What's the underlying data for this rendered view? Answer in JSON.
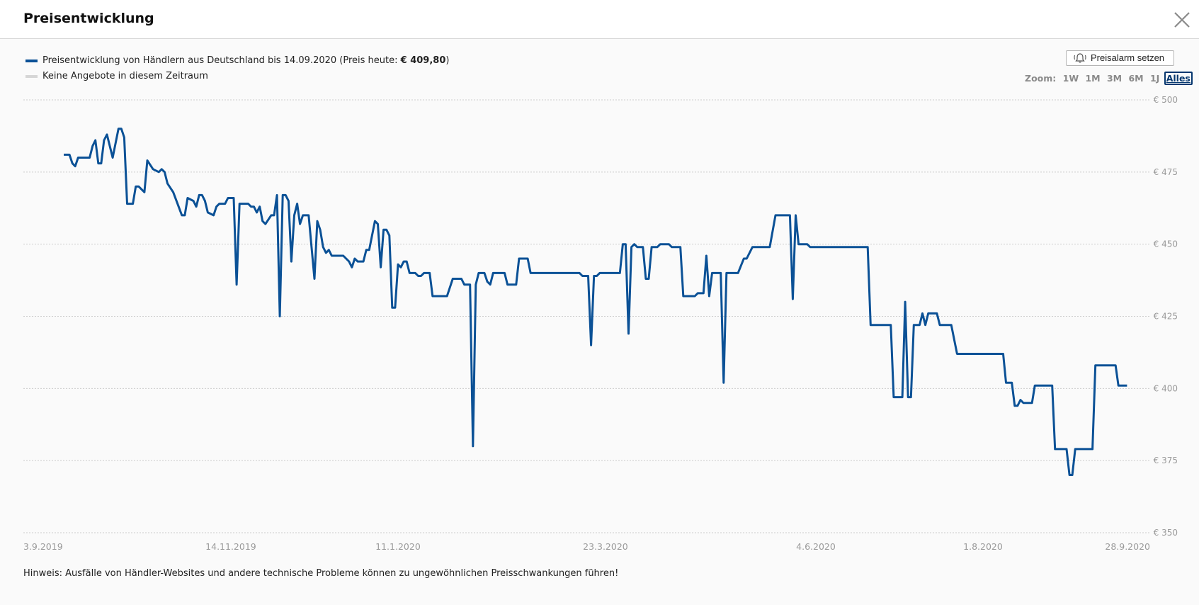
{
  "dialog": {
    "title": "Preisentwicklung",
    "close_icon": "close-icon",
    "alarm_button": {
      "icon": "bell-icon",
      "label": "Preisalarm setzen"
    },
    "zoom": {
      "label": "Zoom:",
      "options": [
        "1W",
        "1M",
        "3M",
        "6M",
        "1J",
        "Alles"
      ],
      "active": "Alles"
    },
    "legend": {
      "series_text": "Preisentwicklung von Händlern aus Deutschland bis 14.09.2020 (Preis heute: ",
      "series_price": "€ 409,80",
      "series_close": ")",
      "no_offers": "Keine Angebote in diesem Zeitraum"
    },
    "note": "Hinweis: Ausfälle von Händler-Websites und andere technische Probleme können zu ungewöhnlichen Preisschwankungen führen!"
  },
  "colors": {
    "series": "#0b5196",
    "no_offers": "#d6d6d6",
    "grid": "#cccccc",
    "axis_text": "#9a9a9a"
  },
  "chart_data": {
    "type": "line",
    "title": "",
    "xlabel": "",
    "ylabel": "",
    "ylim": [
      350,
      500
    ],
    "xlim": [
      "2019-09-03",
      "2020-09-28"
    ],
    "grid": true,
    "yticks": [
      500,
      475,
      450,
      425,
      400,
      375,
      350
    ],
    "ytick_labels": [
      "€ 500",
      "€ 475",
      "€ 450",
      "€ 425",
      "€ 400",
      "€ 375",
      "€ 350"
    ],
    "xticks": [
      "2019-09-03",
      "2019-11-14",
      "2020-01-11",
      "2020-03-23",
      "2020-06-04",
      "2020-08-01",
      "2020-09-28"
    ],
    "xtick_labels": [
      "3.9.2019",
      "14.11.2019",
      "11.1.2020",
      "23.3.2020",
      "4.6.2020",
      "1.8.2020",
      "28.9.2020"
    ],
    "series": [
      {
        "name": "Preisentwicklung von Händlern aus Deutschland bis 14.09.2020",
        "points": [
          [
            "2019-09-17",
            481
          ],
          [
            "2019-09-19",
            481
          ],
          [
            "2019-09-20",
            478
          ],
          [
            "2019-09-21",
            477
          ],
          [
            "2019-09-22",
            480
          ],
          [
            "2019-09-26",
            480
          ],
          [
            "2019-09-27",
            484
          ],
          [
            "2019-09-28",
            486
          ],
          [
            "2019-09-29",
            478
          ],
          [
            "2019-09-30",
            478
          ],
          [
            "2019-10-01",
            486
          ],
          [
            "2019-10-02",
            488
          ],
          [
            "2019-10-04",
            480
          ],
          [
            "2019-10-05",
            485
          ],
          [
            "2019-10-06",
            490
          ],
          [
            "2019-10-07",
            490
          ],
          [
            "2019-10-08",
            487
          ],
          [
            "2019-10-09",
            464
          ],
          [
            "2019-10-11",
            464
          ],
          [
            "2019-10-12",
            470
          ],
          [
            "2019-10-13",
            470
          ],
          [
            "2019-10-15",
            468
          ],
          [
            "2019-10-16",
            479
          ],
          [
            "2019-10-18",
            476
          ],
          [
            "2019-10-20",
            475
          ],
          [
            "2019-10-21",
            476
          ],
          [
            "2019-10-22",
            475
          ],
          [
            "2019-10-23",
            471
          ],
          [
            "2019-10-25",
            468
          ],
          [
            "2019-10-28",
            460
          ],
          [
            "2019-10-29",
            460
          ],
          [
            "2019-10-30",
            466
          ],
          [
            "2019-11-01",
            465
          ],
          [
            "2019-11-02",
            463
          ],
          [
            "2019-11-03",
            467
          ],
          [
            "2019-11-04",
            467
          ],
          [
            "2019-11-05",
            465
          ],
          [
            "2019-11-06",
            461
          ],
          [
            "2019-11-08",
            460
          ],
          [
            "2019-11-09",
            463
          ],
          [
            "2019-11-10",
            464
          ],
          [
            "2019-11-12",
            464
          ],
          [
            "2019-11-13",
            466
          ],
          [
            "2019-11-15",
            466
          ],
          [
            "2019-11-16",
            436
          ],
          [
            "2019-11-17",
            464
          ],
          [
            "2019-11-20",
            464
          ],
          [
            "2019-11-21",
            463
          ],
          [
            "2019-11-22",
            463
          ],
          [
            "2019-11-23",
            461
          ],
          [
            "2019-11-24",
            463
          ],
          [
            "2019-11-25",
            458
          ],
          [
            "2019-11-26",
            457
          ],
          [
            "2019-11-28",
            460
          ],
          [
            "2019-11-29",
            460
          ],
          [
            "2019-11-30",
            467
          ],
          [
            "2019-12-01",
            425
          ],
          [
            "2019-12-02",
            467
          ],
          [
            "2019-12-03",
            467
          ],
          [
            "2019-12-04",
            465
          ],
          [
            "2019-12-05",
            444
          ],
          [
            "2019-12-06",
            460
          ],
          [
            "2019-12-07",
            464
          ],
          [
            "2019-12-08",
            457
          ],
          [
            "2019-12-09",
            460
          ],
          [
            "2019-12-11",
            460
          ],
          [
            "2019-12-13",
            438
          ],
          [
            "2019-12-14",
            458
          ],
          [
            "2019-12-15",
            455
          ],
          [
            "2019-12-16",
            449
          ],
          [
            "2019-12-17",
            447
          ],
          [
            "2019-12-18",
            448
          ],
          [
            "2019-12-19",
            446
          ],
          [
            "2019-12-23",
            446
          ],
          [
            "2019-12-25",
            444
          ],
          [
            "2019-12-26",
            442
          ],
          [
            "2019-12-27",
            445
          ],
          [
            "2019-12-28",
            444
          ],
          [
            "2019-12-30",
            444
          ],
          [
            "2019-12-31",
            448
          ],
          [
            "2020-01-01",
            448
          ],
          [
            "2020-01-03",
            458
          ],
          [
            "2020-01-04",
            457
          ],
          [
            "2020-01-05",
            442
          ],
          [
            "2020-01-06",
            455
          ],
          [
            "2020-01-07",
            455
          ],
          [
            "2020-01-08",
            453
          ],
          [
            "2020-01-09",
            428
          ],
          [
            "2020-01-10",
            428
          ],
          [
            "2020-01-11",
            443
          ],
          [
            "2020-01-12",
            442
          ],
          [
            "2020-01-13",
            444
          ],
          [
            "2020-01-14",
            444
          ],
          [
            "2020-01-15",
            440
          ],
          [
            "2020-01-17",
            440
          ],
          [
            "2020-01-18",
            439
          ],
          [
            "2020-01-19",
            439
          ],
          [
            "2020-01-20",
            440
          ],
          [
            "2020-01-22",
            440
          ],
          [
            "2020-01-23",
            432
          ],
          [
            "2020-01-28",
            432
          ],
          [
            "2020-01-30",
            438
          ],
          [
            "2020-02-02",
            438
          ],
          [
            "2020-02-03",
            436
          ],
          [
            "2020-02-05",
            436
          ],
          [
            "2020-02-06",
            380
          ],
          [
            "2020-02-07",
            436
          ],
          [
            "2020-02-08",
            440
          ],
          [
            "2020-02-10",
            440
          ],
          [
            "2020-02-11",
            437
          ],
          [
            "2020-02-12",
            436
          ],
          [
            "2020-02-13",
            440
          ],
          [
            "2020-02-17",
            440
          ],
          [
            "2020-02-18",
            436
          ],
          [
            "2020-02-21",
            436
          ],
          [
            "2020-02-22",
            445
          ],
          [
            "2020-02-25",
            445
          ],
          [
            "2020-02-26",
            440
          ],
          [
            "2020-03-14",
            440
          ],
          [
            "2020-03-15",
            439
          ],
          [
            "2020-03-17",
            439
          ],
          [
            "2020-03-18",
            415
          ],
          [
            "2020-03-19",
            439
          ],
          [
            "2020-03-20",
            439
          ],
          [
            "2020-03-21",
            440
          ],
          [
            "2020-03-28",
            440
          ],
          [
            "2020-03-29",
            450
          ],
          [
            "2020-03-30",
            450
          ],
          [
            "2020-03-31",
            419
          ],
          [
            "2020-04-01",
            449
          ],
          [
            "2020-04-02",
            450
          ],
          [
            "2020-04-03",
            449
          ],
          [
            "2020-04-05",
            449
          ],
          [
            "2020-04-06",
            438
          ],
          [
            "2020-04-07",
            438
          ],
          [
            "2020-04-08",
            449
          ],
          [
            "2020-04-10",
            449
          ],
          [
            "2020-04-11",
            450
          ],
          [
            "2020-04-14",
            450
          ],
          [
            "2020-04-15",
            449
          ],
          [
            "2020-04-18",
            449
          ],
          [
            "2020-04-19",
            432
          ],
          [
            "2020-04-23",
            432
          ],
          [
            "2020-04-24",
            433
          ],
          [
            "2020-04-26",
            433
          ],
          [
            "2020-04-27",
            446
          ],
          [
            "2020-04-28",
            432
          ],
          [
            "2020-04-29",
            440
          ],
          [
            "2020-05-02",
            440
          ],
          [
            "2020-05-03",
            402
          ],
          [
            "2020-05-04",
            440
          ],
          [
            "2020-05-08",
            440
          ],
          [
            "2020-05-10",
            445
          ],
          [
            "2020-05-11",
            445
          ],
          [
            "2020-05-13",
            449
          ],
          [
            "2020-05-19",
            449
          ],
          [
            "2020-05-21",
            460
          ],
          [
            "2020-05-26",
            460
          ],
          [
            "2020-05-27",
            431
          ],
          [
            "2020-05-28",
            460
          ],
          [
            "2020-05-29",
            450
          ],
          [
            "2020-06-01",
            450
          ],
          [
            "2020-06-02",
            449
          ],
          [
            "2020-06-22",
            449
          ],
          [
            "2020-06-23",
            422
          ],
          [
            "2020-06-30",
            422
          ],
          [
            "2020-07-01",
            397
          ],
          [
            "2020-07-04",
            397
          ],
          [
            "2020-07-05",
            430
          ],
          [
            "2020-07-06",
            397
          ],
          [
            "2020-07-07",
            397
          ],
          [
            "2020-07-08",
            422
          ],
          [
            "2020-07-10",
            422
          ],
          [
            "2020-07-11",
            426
          ],
          [
            "2020-07-12",
            422
          ],
          [
            "2020-07-13",
            426
          ],
          [
            "2020-07-16",
            426
          ],
          [
            "2020-07-17",
            422
          ],
          [
            "2020-07-21",
            422
          ],
          [
            "2020-07-23",
            412
          ],
          [
            "2020-08-08",
            412
          ],
          [
            "2020-08-09",
            402
          ],
          [
            "2020-08-11",
            402
          ],
          [
            "2020-08-12",
            394
          ],
          [
            "2020-08-13",
            394
          ],
          [
            "2020-08-14",
            396
          ],
          [
            "2020-08-15",
            395
          ],
          [
            "2020-08-18",
            395
          ],
          [
            "2020-08-19",
            401
          ],
          [
            "2020-08-25",
            401
          ],
          [
            "2020-08-26",
            379
          ],
          [
            "2020-08-29",
            379
          ],
          [
            "2020-08-30",
            379
          ],
          [
            "2020-08-31",
            370
          ],
          [
            "2020-09-01",
            370
          ],
          [
            "2020-09-02",
            379
          ],
          [
            "2020-09-08",
            379
          ],
          [
            "2020-09-09",
            408
          ],
          [
            "2020-09-16",
            408
          ],
          [
            "2020-09-17",
            401
          ],
          [
            "2020-09-20",
            401
          ]
        ]
      }
    ]
  }
}
